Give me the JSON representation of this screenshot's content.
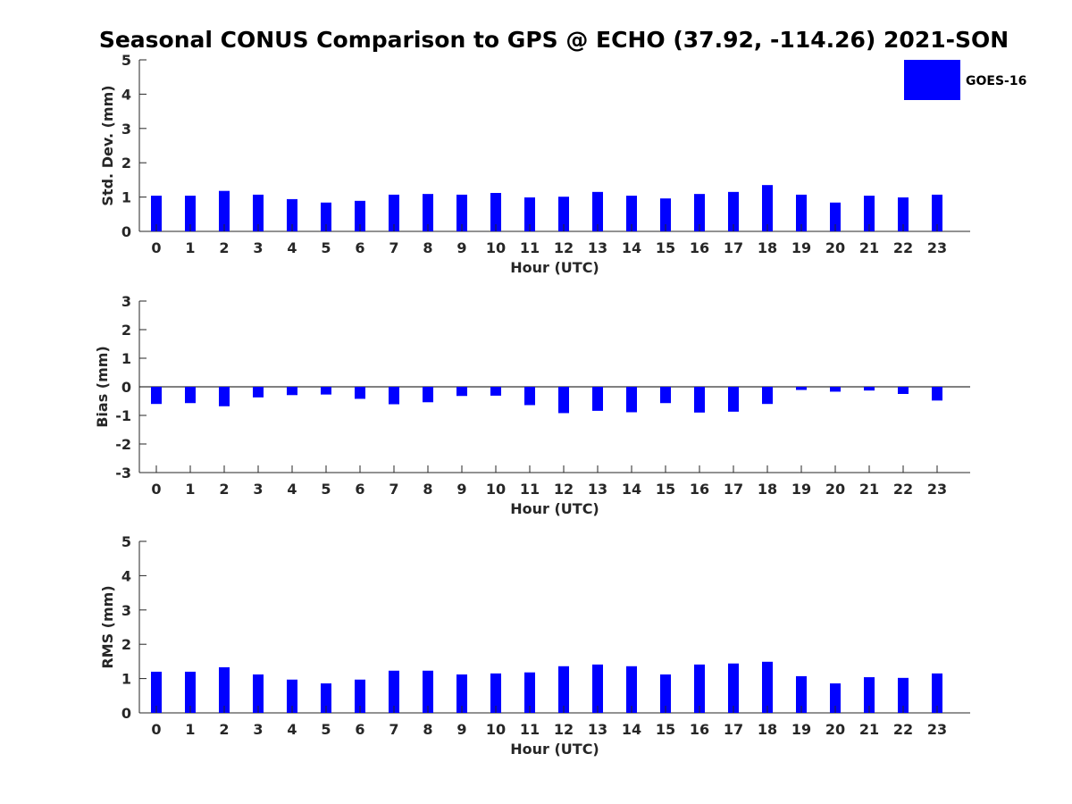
{
  "title": "Seasonal CONUS Comparison to GPS @ ECHO (37.92, -114.26) 2021-SON",
  "legend": {
    "label": "GOES-16",
    "color": "#0000ff",
    "placement": "top-right"
  },
  "chart_data": [
    {
      "type": "bar",
      "title": "",
      "xlabel": "Hour (UTC)",
      "ylabel": "Std. Dev. (mm)",
      "ylim": [
        0,
        5
      ],
      "yticks": [
        0,
        1,
        2,
        3,
        4,
        5
      ],
      "categories": [
        "0",
        "1",
        "2",
        "3",
        "4",
        "5",
        "6",
        "7",
        "8",
        "9",
        "10",
        "11",
        "12",
        "13",
        "14",
        "15",
        "16",
        "17",
        "18",
        "19",
        "20",
        "21",
        "22",
        "23"
      ],
      "series": [
        {
          "name": "GOES-16",
          "color": "#0000ff",
          "values": [
            1.04,
            1.04,
            1.18,
            1.07,
            0.94,
            0.84,
            0.89,
            1.07,
            1.09,
            1.07,
            1.12,
            0.99,
            1.01,
            1.15,
            1.04,
            0.96,
            1.09,
            1.15,
            1.35,
            1.07,
            0.84,
            1.04,
            0.99,
            1.07
          ]
        }
      ]
    },
    {
      "type": "bar",
      "title": "",
      "xlabel": "Hour (UTC)",
      "ylabel": "Bias (mm)",
      "ylim": [
        -3,
        3
      ],
      "yticks": [
        -3,
        -2,
        -1,
        0,
        1,
        2,
        3
      ],
      "categories": [
        "0",
        "1",
        "2",
        "3",
        "4",
        "5",
        "6",
        "7",
        "8",
        "9",
        "10",
        "11",
        "12",
        "13",
        "14",
        "15",
        "16",
        "17",
        "18",
        "19",
        "20",
        "21",
        "22",
        "23"
      ],
      "series": [
        {
          "name": "GOES-16",
          "color": "#0000ff",
          "values": [
            -0.6,
            -0.57,
            -0.68,
            -0.37,
            -0.29,
            -0.27,
            -0.42,
            -0.61,
            -0.54,
            -0.32,
            -0.31,
            -0.64,
            -0.92,
            -0.84,
            -0.89,
            -0.57,
            -0.9,
            -0.87,
            -0.6,
            -0.11,
            -0.17,
            -0.13,
            -0.25,
            -0.48
          ]
        }
      ]
    },
    {
      "type": "bar",
      "title": "",
      "xlabel": "Hour (UTC)",
      "ylabel": "RMS (mm)",
      "ylim": [
        0,
        5
      ],
      "yticks": [
        0,
        1,
        2,
        3,
        4,
        5
      ],
      "categories": [
        "0",
        "1",
        "2",
        "3",
        "4",
        "5",
        "6",
        "7",
        "8",
        "9",
        "10",
        "11",
        "12",
        "13",
        "14",
        "15",
        "16",
        "17",
        "18",
        "19",
        "20",
        "21",
        "22",
        "23"
      ],
      "series": [
        {
          "name": "GOES-16",
          "color": "#0000ff",
          "values": [
            1.2,
            1.2,
            1.33,
            1.12,
            0.97,
            0.86,
            0.97,
            1.23,
            1.23,
            1.12,
            1.15,
            1.18,
            1.36,
            1.41,
            1.36,
            1.12,
            1.41,
            1.44,
            1.49,
            1.07,
            0.86,
            1.04,
            1.02,
            1.15
          ]
        }
      ]
    }
  ]
}
